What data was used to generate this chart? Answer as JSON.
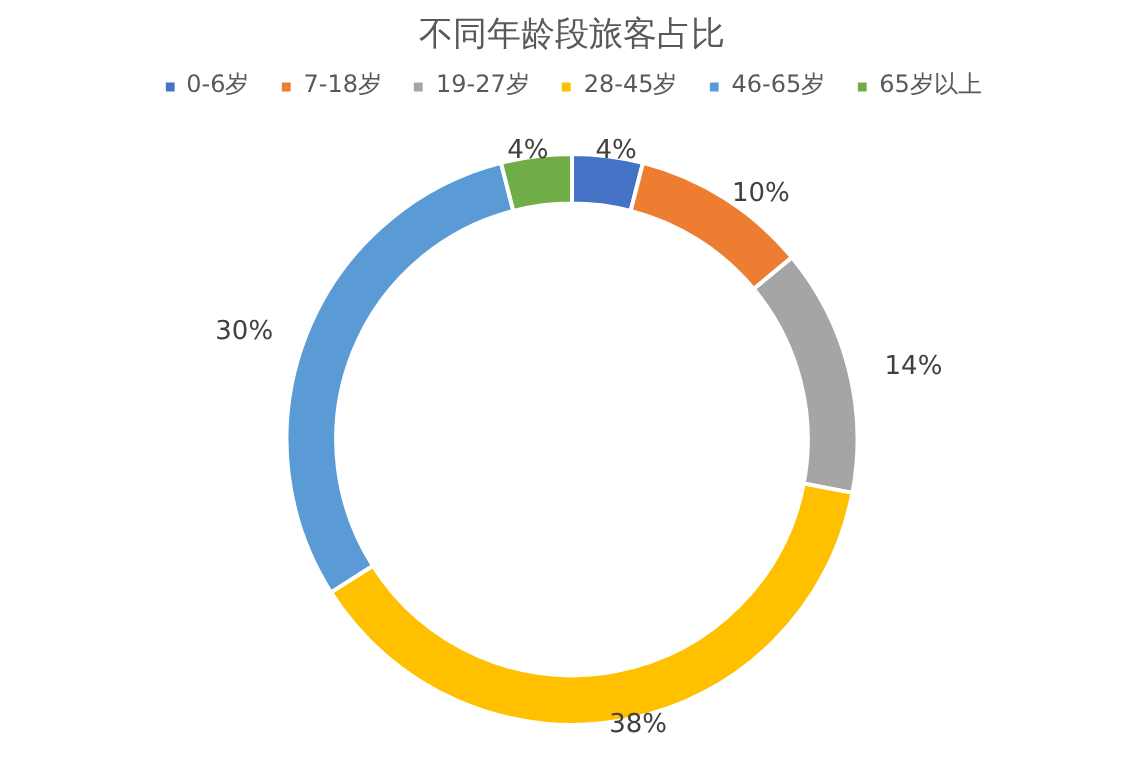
{
  "chart_data": {
    "type": "donut",
    "title": "不同年龄段旅客占比",
    "categories": [
      "0-6岁",
      "7-18岁",
      "19-27岁",
      "28-45岁",
      "46-65岁",
      "65岁以上"
    ],
    "values": [
      4,
      10,
      14,
      38,
      30,
      4
    ],
    "colors": [
      "#4472c4",
      "#ed7d31",
      "#a5a5a5",
      "#ffc000",
      "#5b9bd5",
      "#70ad47"
    ],
    "value_labels": [
      "4%",
      "10%",
      "14%",
      "38%",
      "30%",
      "4%"
    ],
    "legend": "top"
  }
}
